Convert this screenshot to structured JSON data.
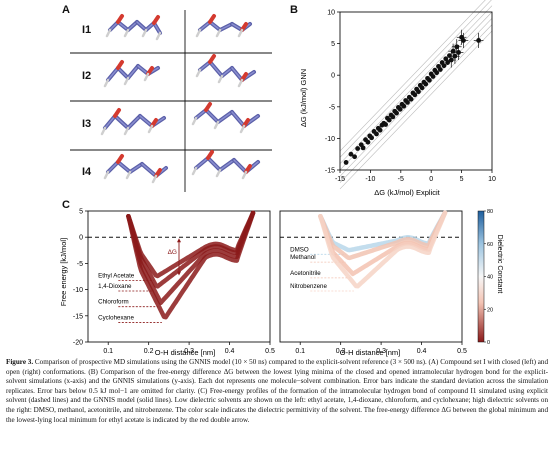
{
  "panels": {
    "a": {
      "letter": "A",
      "rows": [
        "I1",
        "I2",
        "I3",
        "I4"
      ]
    },
    "b": {
      "letter": "B"
    },
    "c": {
      "letter": "C"
    }
  },
  "chart_data": [
    {
      "panel": "B",
      "type": "scatter",
      "xlabel": "ΔG (kJ/mol) Explicit",
      "ylabel": "ΔG (kJ/mol) GNN",
      "xlim": [
        -15,
        10
      ],
      "ylim": [
        -15,
        10
      ],
      "xticks": [
        -15,
        -10,
        -5,
        0,
        5,
        10
      ],
      "yticks": [
        -15,
        -10,
        -5,
        0,
        5,
        10
      ],
      "x": [
        -14,
        -13.2,
        -12.6,
        -12.1,
        -11.5,
        -11.2,
        -10.8,
        -10.4,
        -10.1,
        -9.8,
        -9.4,
        -9.0,
        -8.7,
        -8.4,
        -8.1,
        -7.8,
        -7.5,
        -7.2,
        -6.9,
        -6.6,
        -6.3,
        -6.0,
        -5.7,
        -5.4,
        -5.1,
        -4.8,
        -4.5,
        -4.2,
        -3.9,
        -3.6,
        -3.3,
        -3.0,
        -2.7,
        -2.4,
        -2.1,
        -1.8,
        -1.5,
        -1.2,
        -0.9,
        -0.6,
        -0.3,
        0.0,
        0.3,
        0.6,
        0.9,
        1.2,
        1.5,
        1.8,
        2.1,
        2.4,
        2.7,
        3.0,
        3.3,
        3.6,
        3.9,
        4.2,
        4.5,
        5.0,
        5.3,
        7.8
      ],
      "y": [
        -13.8,
        -12.5,
        -12.9,
        -11.6,
        -11.0,
        -11.5,
        -10.2,
        -10.6,
        -9.6,
        -9.9,
        -8.9,
        -9.3,
        -8.4,
        -8.7,
        -7.9,
        -7.6,
        -7.8,
        -6.8,
        -7.1,
        -6.3,
        -6.6,
        -5.7,
        -6.0,
        -5.1,
        -5.4,
        -4.6,
        -4.9,
        -4.0,
        -4.3,
        -3.5,
        -3.8,
        -2.8,
        -3.1,
        -2.2,
        -2.6,
        -1.6,
        -2.0,
        -1.1,
        -1.4,
        -0.5,
        -0.8,
        0.2,
        -0.2,
        0.8,
        0.4,
        1.4,
        0.9,
        2.0,
        1.5,
        2.6,
        2.0,
        3.1,
        2.4,
        3.8,
        3.0,
        4.5,
        3.6,
        6.0,
        5.5,
        5.5
      ]
    },
    {
      "panel": "C-left",
      "type": "line",
      "xlabel": "O-H distance [nm]",
      "ylabel": "Free energy [kJ/mol]",
      "xlim": [
        0.05,
        0.5
      ],
      "ylim": [
        -20,
        5
      ],
      "xticks": [
        0.1,
        0.2,
        0.3,
        0.4,
        0.5
      ],
      "yticks": [
        5,
        0,
        -5,
        -10,
        -15,
        -20
      ],
      "series": [
        {
          "name": "Ethyl Acetate",
          "color": "#8b1a1a",
          "minimum": -7.5,
          "min_x": 0.22
        },
        {
          "name": "1,4-Dioxane",
          "color": "#8b1a1a",
          "minimum": -9.5,
          "min_x": 0.22
        },
        {
          "name": "Chloroform",
          "color": "#8b1a1a",
          "minimum": -12.5,
          "min_x": 0.23
        },
        {
          "name": "Cyclohexane",
          "color": "#8b1a1a",
          "minimum": -15.5,
          "min_x": 0.24
        }
      ],
      "annotation": "ΔG"
    },
    {
      "panel": "C-right",
      "type": "line",
      "xlabel": "O-H distance [nm]",
      "xlim": [
        0.05,
        0.5
      ],
      "ylim": [
        -20,
        5
      ],
      "xticks": [
        0.1,
        0.2,
        0.3,
        0.4,
        0.5
      ],
      "series": [
        {
          "name": "DMSO",
          "color": "#b9d7ea",
          "minimum": -2.5,
          "min_x": 0.22
        },
        {
          "name": "Methanol",
          "color": "#f1c3b2",
          "minimum": -4.0,
          "min_x": 0.22
        },
        {
          "name": "Acetonitrile",
          "color": "#f3c2b0",
          "minimum": -7.0,
          "min_x": 0.23
        },
        {
          "name": "Nitrobenzene",
          "color": "#f6d3c6",
          "minimum": -9.5,
          "min_x": 0.24
        }
      ],
      "colorbar": {
        "label": "Dielectric Constant",
        "ticks": [
          80,
          60,
          40,
          20,
          0
        ],
        "min": 0,
        "max": 80,
        "low_color": "#8b1a1a",
        "mid_color": "#f7f7f7",
        "high_color": "#1f5f9e"
      }
    }
  ],
  "caption": {
    "label": "Figure 3.",
    "text": "Comparison of prospective MD simulations using the GNNIS model (10 × 50 ns) compared to the explicit-solvent reference (3 × 500 ns). (A) Compound set I with closed (left) and open (right) conformations. (B) Comparison of the free-energy difference ΔG between the lowest lying minima of the closed and opened intramolecular hydrogen bond for the explicit-solvent simulations (x-axis) and the GNNIS simulations (y-axis). Each dot represents one molecule−solvent combination. Error bars indicate the standard deviation across the simulation replicates. Error bars below 0.5 kJ mol−1 are omitted for clarity. (C) Free-energy profiles of the formation of the intramolecular hydrogen bond of compound I1 simulated using explicit solvent (dashed lines) and the GNNIS model (solid lines). Low dielectric solvents are shown on the left: ethyl acetate, 1,4-dioxane, chloroform, and cyclohexane; high dielectric solvents on the right: DMSO, methanol, acetonitrile, and nitrobenzene. The color scale indicates the dielectric permittivity of the solvent. The free-energy difference ΔG between the global minimum and the lowest-lying local minimum for ethyl acetate is indicated by the red double arrow."
  }
}
